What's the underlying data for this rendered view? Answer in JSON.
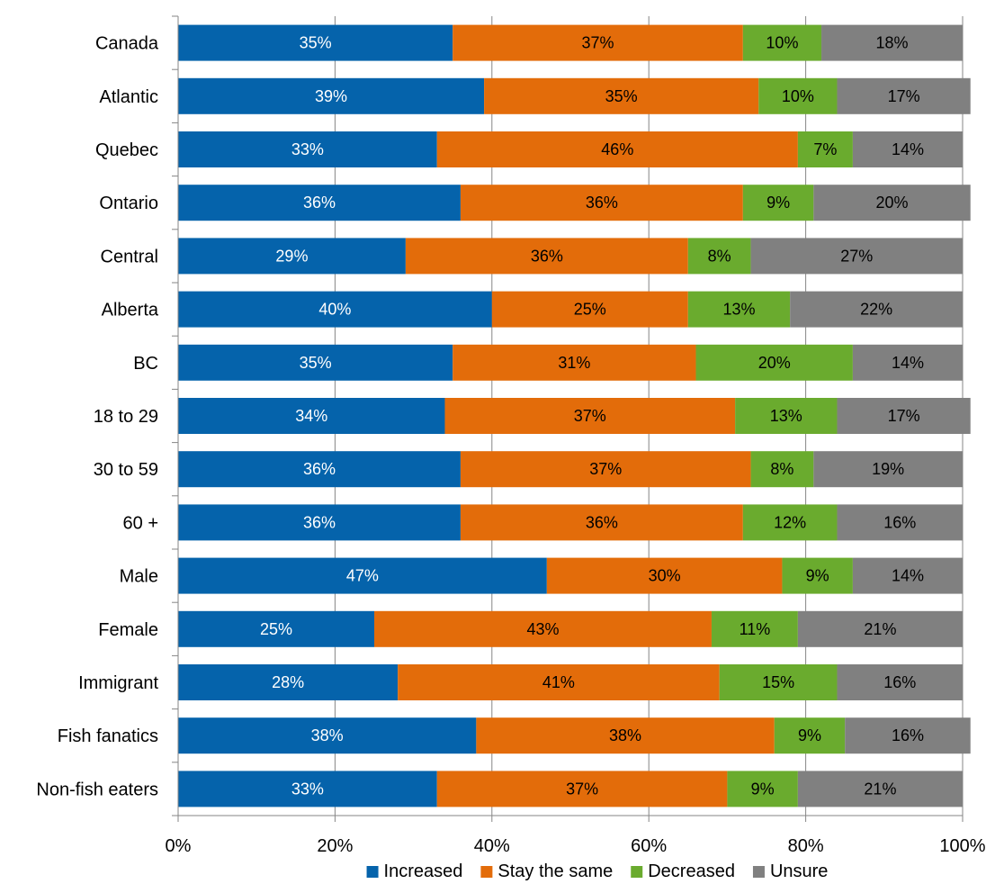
{
  "chart_data": {
    "type": "bar",
    "orientation": "horizontal",
    "stacked": true,
    "categories": [
      "Canada",
      "Atlantic",
      "Quebec",
      "Ontario",
      "Central",
      "Alberta",
      "BC",
      "18 to 29",
      "30 to 59",
      "60 +",
      "Male",
      "Female",
      "Immigrant",
      "Fish fanatics",
      "Non-fish eaters"
    ],
    "series": [
      {
        "name": "Increased",
        "color": "#0563AB",
        "label_color": "#FFFFFF",
        "values": [
          35,
          39,
          33,
          36,
          29,
          40,
          35,
          34,
          36,
          36,
          47,
          25,
          28,
          38,
          33
        ]
      },
      {
        "name": "Stay the same",
        "color": "#E36C0A",
        "label_color": "#000000",
        "values": [
          37,
          35,
          46,
          36,
          36,
          25,
          31,
          37,
          37,
          36,
          30,
          43,
          41,
          38,
          37
        ]
      },
      {
        "name": "Decreased",
        "color": "#6AAB2E",
        "label_color": "#000000",
        "values": [
          10,
          10,
          7,
          9,
          8,
          13,
          20,
          13,
          8,
          12,
          9,
          11,
          15,
          9,
          9
        ]
      },
      {
        "name": "Unsure",
        "color": "#808080",
        "label_color": "#000000",
        "values": [
          18,
          17,
          14,
          20,
          27,
          22,
          14,
          17,
          19,
          16,
          14,
          21,
          16,
          16,
          21
        ]
      }
    ],
    "xlim": [
      0,
      100
    ],
    "x_ticks": [
      0,
      20,
      40,
      60,
      80,
      100
    ],
    "x_tick_labels": [
      "0%",
      "20%",
      "40%",
      "60%",
      "80%",
      "100%"
    ],
    "value_suffix": "%",
    "grid": true,
    "legend_position": "bottom",
    "title": "",
    "xlabel": "",
    "ylabel": ""
  }
}
